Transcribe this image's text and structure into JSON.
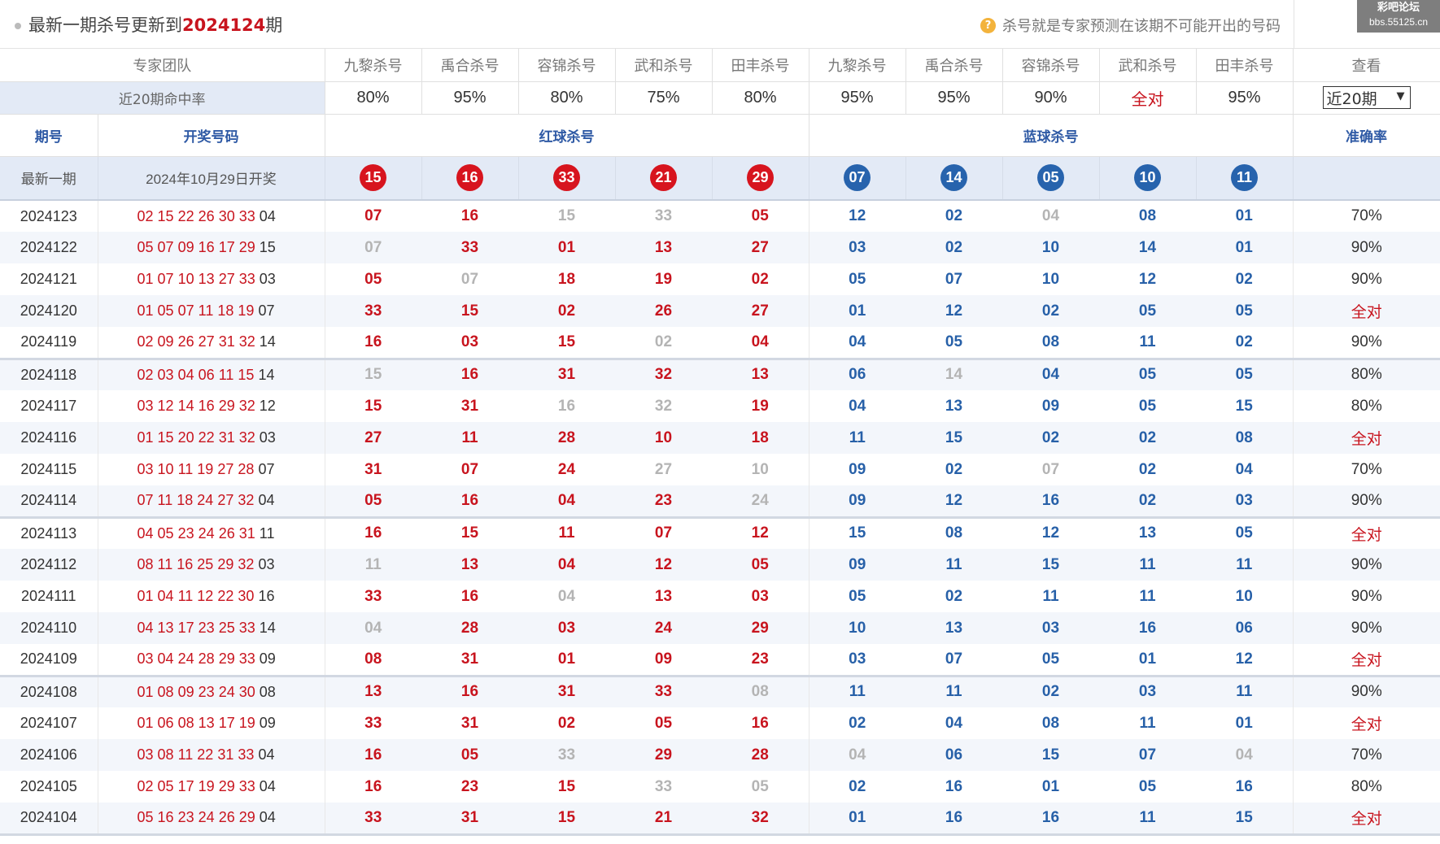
{
  "header": {
    "title_prefix": "最新一期杀号更新到",
    "title_issue": "2024124",
    "title_suffix": "期",
    "note": "杀号就是专家预测在该期不可能开出的号码",
    "note_icon": "question-icon"
  },
  "watermark": {
    "line1": "彩吧论坛",
    "line2": "bbs.55125.cn"
  },
  "experts_header": {
    "label": "专家团队",
    "red_experts": [
      "九黎杀号",
      "禹合杀号",
      "容锦杀号",
      "武和杀号",
      "田丰杀号"
    ],
    "blue_experts": [
      "九黎杀号",
      "禹合杀号",
      "容锦杀号",
      "武和杀号",
      "田丰杀号"
    ],
    "view_label": "查看"
  },
  "hit_rate": {
    "label": "近20期命中率",
    "values": [
      "80%",
      "95%",
      "80%",
      "75%",
      "80%",
      "95%",
      "95%",
      "90%",
      "全对",
      "95%"
    ],
    "period_select": "近20期",
    "period_icon": "chevron-down-icon"
  },
  "section_headers": {
    "issue": "期号",
    "numbers": "开奖号码",
    "red_kill": "红球杀号",
    "blue_kill": "蓝球杀号",
    "accuracy": "准确率"
  },
  "latest": {
    "label": "最新一期",
    "date": "2024年10月29日开奖",
    "red": [
      "15",
      "16",
      "33",
      "21",
      "29"
    ],
    "blue": [
      "07",
      "14",
      "05",
      "10",
      "11"
    ]
  },
  "colors": {
    "red": "#d7141e",
    "blue": "#2763ad",
    "miss": "#b4b4b4",
    "header_text": "#2f5aa5"
  },
  "rows": [
    {
      "issue": "2024123",
      "reds": [
        "02",
        "15",
        "22",
        "26",
        "30",
        "33"
      ],
      "blue": "04",
      "red_kills": [
        "07",
        "16",
        "15",
        "33",
        "05"
      ],
      "red_hits": [
        1,
        1,
        0,
        0,
        1
      ],
      "blue_kills": [
        "12",
        "02",
        "04",
        "08",
        "01"
      ],
      "blue_hits": [
        1,
        1,
        0,
        1,
        1
      ],
      "accuracy": "70%"
    },
    {
      "issue": "2024122",
      "reds": [
        "05",
        "07",
        "09",
        "16",
        "17",
        "29"
      ],
      "blue": "15",
      "red_kills": [
        "07",
        "33",
        "01",
        "13",
        "27"
      ],
      "red_hits": [
        0,
        1,
        1,
        1,
        1
      ],
      "blue_kills": [
        "03",
        "02",
        "10",
        "14",
        "01"
      ],
      "blue_hits": [
        1,
        1,
        1,
        1,
        1
      ],
      "accuracy": "90%"
    },
    {
      "issue": "2024121",
      "reds": [
        "01",
        "07",
        "10",
        "13",
        "27",
        "33"
      ],
      "blue": "03",
      "red_kills": [
        "05",
        "07",
        "18",
        "19",
        "02"
      ],
      "red_hits": [
        1,
        0,
        1,
        1,
        1
      ],
      "blue_kills": [
        "05",
        "07",
        "10",
        "12",
        "02"
      ],
      "blue_hits": [
        1,
        1,
        1,
        1,
        1
      ],
      "accuracy": "90%"
    },
    {
      "issue": "2024120",
      "reds": [
        "01",
        "05",
        "07",
        "11",
        "18",
        "19"
      ],
      "blue": "07",
      "red_kills": [
        "33",
        "15",
        "02",
        "26",
        "27"
      ],
      "red_hits": [
        1,
        1,
        1,
        1,
        1
      ],
      "blue_kills": [
        "01",
        "12",
        "02",
        "05",
        "05"
      ],
      "blue_hits": [
        1,
        1,
        1,
        1,
        1
      ],
      "accuracy": "全对"
    },
    {
      "issue": "2024119",
      "reds": [
        "02",
        "09",
        "26",
        "27",
        "31",
        "32"
      ],
      "blue": "14",
      "red_kills": [
        "16",
        "03",
        "15",
        "02",
        "04"
      ],
      "red_hits": [
        1,
        1,
        1,
        0,
        1
      ],
      "blue_kills": [
        "04",
        "05",
        "08",
        "11",
        "02"
      ],
      "blue_hits": [
        1,
        1,
        1,
        1,
        1
      ],
      "accuracy": "90%"
    },
    {
      "issue": "2024118",
      "reds": [
        "02",
        "03",
        "04",
        "06",
        "11",
        "15"
      ],
      "blue": "14",
      "red_kills": [
        "15",
        "16",
        "31",
        "32",
        "13"
      ],
      "red_hits": [
        0,
        1,
        1,
        1,
        1
      ],
      "blue_kills": [
        "06",
        "14",
        "04",
        "05",
        "05"
      ],
      "blue_hits": [
        1,
        0,
        1,
        1,
        1
      ],
      "accuracy": "80%"
    },
    {
      "issue": "2024117",
      "reds": [
        "03",
        "12",
        "14",
        "16",
        "29",
        "32"
      ],
      "blue": "12",
      "red_kills": [
        "15",
        "31",
        "16",
        "32",
        "19"
      ],
      "red_hits": [
        1,
        1,
        0,
        0,
        1
      ],
      "blue_kills": [
        "04",
        "13",
        "09",
        "05",
        "15"
      ],
      "blue_hits": [
        1,
        1,
        1,
        1,
        1
      ],
      "accuracy": "80%"
    },
    {
      "issue": "2024116",
      "reds": [
        "01",
        "15",
        "20",
        "22",
        "31",
        "32"
      ],
      "blue": "03",
      "red_kills": [
        "27",
        "11",
        "28",
        "10",
        "18"
      ],
      "red_hits": [
        1,
        1,
        1,
        1,
        1
      ],
      "blue_kills": [
        "11",
        "15",
        "02",
        "02",
        "08"
      ],
      "blue_hits": [
        1,
        1,
        1,
        1,
        1
      ],
      "accuracy": "全对"
    },
    {
      "issue": "2024115",
      "reds": [
        "03",
        "10",
        "11",
        "19",
        "27",
        "28"
      ],
      "blue": "07",
      "red_kills": [
        "31",
        "07",
        "24",
        "27",
        "10"
      ],
      "red_hits": [
        1,
        1,
        1,
        0,
        0
      ],
      "blue_kills": [
        "09",
        "02",
        "07",
        "02",
        "04"
      ],
      "blue_hits": [
        1,
        1,
        0,
        1,
        1
      ],
      "accuracy": "70%"
    },
    {
      "issue": "2024114",
      "reds": [
        "07",
        "11",
        "18",
        "24",
        "27",
        "32"
      ],
      "blue": "04",
      "red_kills": [
        "05",
        "16",
        "04",
        "23",
        "24"
      ],
      "red_hits": [
        1,
        1,
        1,
        1,
        0
      ],
      "blue_kills": [
        "09",
        "12",
        "16",
        "02",
        "03"
      ],
      "blue_hits": [
        1,
        1,
        1,
        1,
        1
      ],
      "accuracy": "90%"
    },
    {
      "issue": "2024113",
      "reds": [
        "04",
        "05",
        "23",
        "24",
        "26",
        "31"
      ],
      "blue": "11",
      "red_kills": [
        "16",
        "15",
        "11",
        "07",
        "12"
      ],
      "red_hits": [
        1,
        1,
        1,
        1,
        1
      ],
      "blue_kills": [
        "15",
        "08",
        "12",
        "13",
        "05"
      ],
      "blue_hits": [
        1,
        1,
        1,
        1,
        1
      ],
      "accuracy": "全对"
    },
    {
      "issue": "2024112",
      "reds": [
        "08",
        "11",
        "16",
        "25",
        "29",
        "32"
      ],
      "blue": "03",
      "red_kills": [
        "11",
        "13",
        "04",
        "12",
        "05"
      ],
      "red_hits": [
        0,
        1,
        1,
        1,
        1
      ],
      "blue_kills": [
        "09",
        "11",
        "15",
        "11",
        "11"
      ],
      "blue_hits": [
        1,
        1,
        1,
        1,
        1
      ],
      "accuracy": "90%"
    },
    {
      "issue": "2024111",
      "reds": [
        "01",
        "04",
        "11",
        "12",
        "22",
        "30"
      ],
      "blue": "16",
      "red_kills": [
        "33",
        "16",
        "04",
        "13",
        "03"
      ],
      "red_hits": [
        1,
        1,
        0,
        1,
        1
      ],
      "blue_kills": [
        "05",
        "02",
        "11",
        "11",
        "10"
      ],
      "blue_hits": [
        1,
        1,
        1,
        1,
        1
      ],
      "accuracy": "90%"
    },
    {
      "issue": "2024110",
      "reds": [
        "04",
        "13",
        "17",
        "23",
        "25",
        "33"
      ],
      "blue": "14",
      "red_kills": [
        "04",
        "28",
        "03",
        "24",
        "29"
      ],
      "red_hits": [
        0,
        1,
        1,
        1,
        1
      ],
      "blue_kills": [
        "10",
        "13",
        "03",
        "16",
        "06"
      ],
      "blue_hits": [
        1,
        1,
        1,
        1,
        1
      ],
      "accuracy": "90%"
    },
    {
      "issue": "2024109",
      "reds": [
        "03",
        "04",
        "24",
        "28",
        "29",
        "33"
      ],
      "blue": "09",
      "red_kills": [
        "08",
        "31",
        "01",
        "09",
        "23"
      ],
      "red_hits": [
        1,
        1,
        1,
        1,
        1
      ],
      "blue_kills": [
        "03",
        "07",
        "05",
        "01",
        "12"
      ],
      "blue_hits": [
        1,
        1,
        1,
        1,
        1
      ],
      "accuracy": "全对"
    },
    {
      "issue": "2024108",
      "reds": [
        "01",
        "08",
        "09",
        "23",
        "24",
        "30"
      ],
      "blue": "08",
      "red_kills": [
        "13",
        "16",
        "31",
        "33",
        "08"
      ],
      "red_hits": [
        1,
        1,
        1,
        1,
        0
      ],
      "blue_kills": [
        "11",
        "11",
        "02",
        "03",
        "11"
      ],
      "blue_hits": [
        1,
        1,
        1,
        1,
        1
      ],
      "accuracy": "90%"
    },
    {
      "issue": "2024107",
      "reds": [
        "01",
        "06",
        "08",
        "13",
        "17",
        "19"
      ],
      "blue": "09",
      "red_kills": [
        "33",
        "31",
        "02",
        "05",
        "16"
      ],
      "red_hits": [
        1,
        1,
        1,
        1,
        1
      ],
      "blue_kills": [
        "02",
        "04",
        "08",
        "11",
        "01"
      ],
      "blue_hits": [
        1,
        1,
        1,
        1,
        1
      ],
      "accuracy": "全对"
    },
    {
      "issue": "2024106",
      "reds": [
        "03",
        "08",
        "11",
        "22",
        "31",
        "33"
      ],
      "blue": "04",
      "red_kills": [
        "16",
        "05",
        "33",
        "29",
        "28"
      ],
      "red_hits": [
        1,
        1,
        0,
        1,
        1
      ],
      "blue_kills": [
        "04",
        "06",
        "15",
        "07",
        "04"
      ],
      "blue_hits": [
        0,
        1,
        1,
        1,
        0
      ],
      "accuracy": "70%"
    },
    {
      "issue": "2024105",
      "reds": [
        "02",
        "05",
        "17",
        "19",
        "29",
        "33"
      ],
      "blue": "04",
      "red_kills": [
        "16",
        "23",
        "15",
        "33",
        "05"
      ],
      "red_hits": [
        1,
        1,
        1,
        0,
        0
      ],
      "blue_kills": [
        "02",
        "16",
        "01",
        "05",
        "16"
      ],
      "blue_hits": [
        1,
        1,
        1,
        1,
        1
      ],
      "accuracy": "80%"
    },
    {
      "issue": "2024104",
      "reds": [
        "05",
        "16",
        "23",
        "24",
        "26",
        "29"
      ],
      "blue": "04",
      "red_kills": [
        "33",
        "31",
        "15",
        "21",
        "32"
      ],
      "red_hits": [
        1,
        1,
        1,
        1,
        1
      ],
      "blue_kills": [
        "01",
        "16",
        "16",
        "11",
        "15"
      ],
      "blue_hits": [
        1,
        1,
        1,
        1,
        1
      ],
      "accuracy": "全对"
    }
  ]
}
